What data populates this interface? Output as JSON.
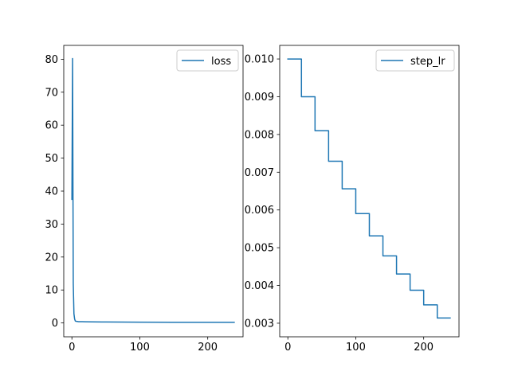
{
  "chart_data": [
    {
      "type": "line",
      "title": "",
      "xlabel": "",
      "ylabel": "",
      "xlim": [
        -12,
        252
      ],
      "ylim": [
        -4.2,
        84.2
      ],
      "xticks": [
        0,
        100,
        200
      ],
      "xtick_labels": [
        "0",
        "100",
        "200"
      ],
      "yticks": [
        0,
        10,
        20,
        30,
        40,
        50,
        60,
        70,
        80
      ],
      "ytick_labels": [
        "0",
        "10",
        "20",
        "30",
        "40",
        "50",
        "60",
        "70",
        "80"
      ],
      "grid": false,
      "legend_position": "top-right",
      "series": [
        {
          "name": "loss",
          "color": "#1f77b4",
          "x": [
            0,
            1,
            2,
            3,
            4,
            5,
            6,
            8,
            10,
            15,
            20,
            30,
            50,
            100,
            150,
            200,
            239
          ],
          "y": [
            37.5,
            80.2,
            12,
            2.8,
            1.2,
            0.6,
            0.5,
            0.45,
            0.4,
            0.38,
            0.36,
            0.33,
            0.3,
            0.25,
            0.22,
            0.2,
            0.2
          ]
        }
      ]
    },
    {
      "type": "line",
      "title": "",
      "xlabel": "",
      "ylabel": "",
      "xlim": [
        -12,
        252
      ],
      "ylim": [
        0.00264,
        0.01036
      ],
      "xticks": [
        0,
        100,
        200
      ],
      "xtick_labels": [
        "0",
        "100",
        "200"
      ],
      "yticks": [
        0.003,
        0.004,
        0.005,
        0.006,
        0.007,
        0.008,
        0.009,
        0.01
      ],
      "ytick_labels": [
        "0.003",
        "0.004",
        "0.005",
        "0.006",
        "0.007",
        "0.008",
        "0.009",
        "0.010"
      ],
      "grid": false,
      "legend_position": "top-right",
      "series": [
        {
          "name": "step_lr",
          "color": "#1f77b4",
          "step_size": 20,
          "gamma": 0.9,
          "initial": 0.01,
          "x_end": 239
        }
      ]
    }
  ]
}
